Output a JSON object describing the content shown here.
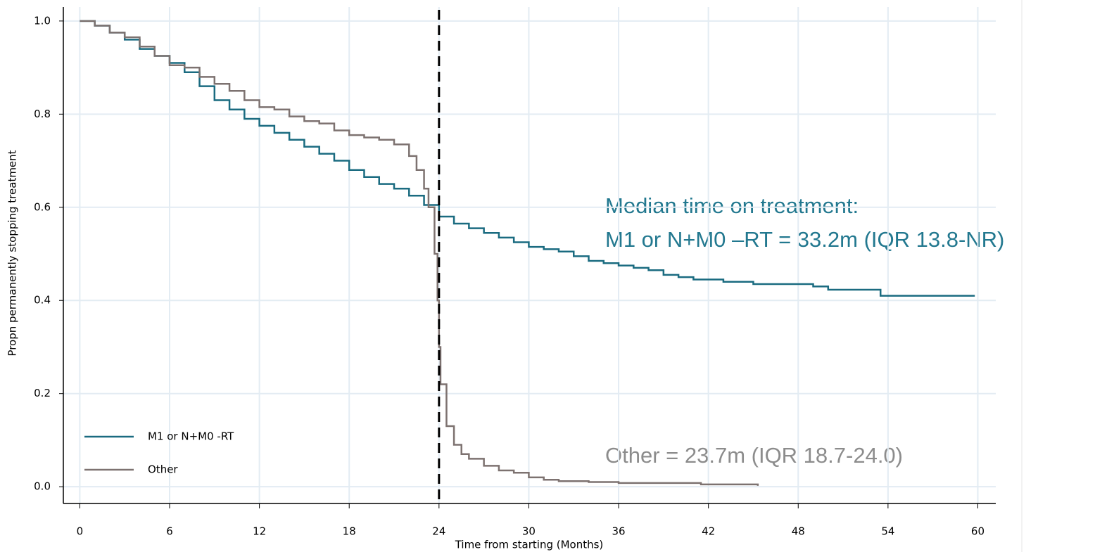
{
  "chart_data": {
    "type": "step",
    "x_label": "Time from starting (Months)",
    "y_label": "Propn permanently stopping treatment",
    "xlim": [
      -1.1,
      61.2
    ],
    "ylim": [
      -0.036,
      1.03
    ],
    "xticks": [
      0,
      6,
      12,
      18,
      24,
      30,
      36,
      42,
      48,
      54,
      60
    ],
    "yticks": [
      {
        "value": 0,
        "label": "0.0"
      },
      0.2,
      0.4,
      0.6,
      0.8,
      {
        "value": 1,
        "label": "1.0"
      }
    ],
    "grid": true,
    "legend": "lower left",
    "vline": 24,
    "annotations": [
      "Median time on treatment:",
      "M1 or N+M0 –RT = 33.2m (IQR 13.8-NR)",
      "Other = 23.7m (IQR 18.7-24.0)"
    ],
    "series": [
      {
        "name": "M1 or N+M0 -RT",
        "color": "#1a6b80",
        "x": [
          0,
          1,
          2,
          3,
          4,
          5,
          6,
          7,
          8,
          9,
          10,
          11,
          12,
          13,
          14,
          15,
          16,
          17,
          18,
          19,
          20,
          21,
          22,
          23,
          24,
          25,
          26,
          27,
          28,
          29,
          30,
          31,
          32,
          33,
          34,
          35,
          36,
          37,
          38,
          39,
          40,
          41,
          43,
          45,
          49,
          50,
          53.5,
          59.8
        ],
        "values": [
          1.0,
          0.99,
          0.975,
          0.96,
          0.94,
          0.925,
          0.91,
          0.89,
          0.86,
          0.83,
          0.81,
          0.79,
          0.775,
          0.76,
          0.745,
          0.73,
          0.715,
          0.7,
          0.68,
          0.665,
          0.65,
          0.64,
          0.625,
          0.605,
          0.58,
          0.565,
          0.555,
          0.545,
          0.535,
          0.525,
          0.515,
          0.51,
          0.505,
          0.495,
          0.485,
          0.48,
          0.475,
          0.47,
          0.465,
          0.455,
          0.45,
          0.445,
          0.44,
          0.435,
          0.43,
          0.423,
          0.41,
          0.41
        ]
      },
      {
        "name": "Other",
        "color": "#7d7270",
        "x": [
          0,
          1,
          2,
          3,
          4,
          5,
          6,
          7,
          8,
          9,
          10,
          11,
          12,
          13,
          14,
          15,
          16,
          17,
          18,
          19,
          20,
          21,
          22,
          22.5,
          23,
          23.3,
          23.7,
          23.9,
          24,
          24.1,
          24.5,
          25,
          25.5,
          26,
          27,
          28,
          29,
          30,
          31,
          32,
          34,
          36,
          41.5,
          45.3
        ],
        "values": [
          1.0,
          0.99,
          0.975,
          0.965,
          0.945,
          0.925,
          0.905,
          0.9,
          0.88,
          0.865,
          0.85,
          0.83,
          0.815,
          0.81,
          0.795,
          0.785,
          0.78,
          0.765,
          0.755,
          0.75,
          0.745,
          0.735,
          0.71,
          0.68,
          0.64,
          0.6,
          0.5,
          0.4,
          0.3,
          0.22,
          0.13,
          0.09,
          0.07,
          0.06,
          0.045,
          0.035,
          0.03,
          0.02,
          0.015,
          0.012,
          0.01,
          0.008,
          0.005,
          0.002
        ]
      }
    ]
  }
}
